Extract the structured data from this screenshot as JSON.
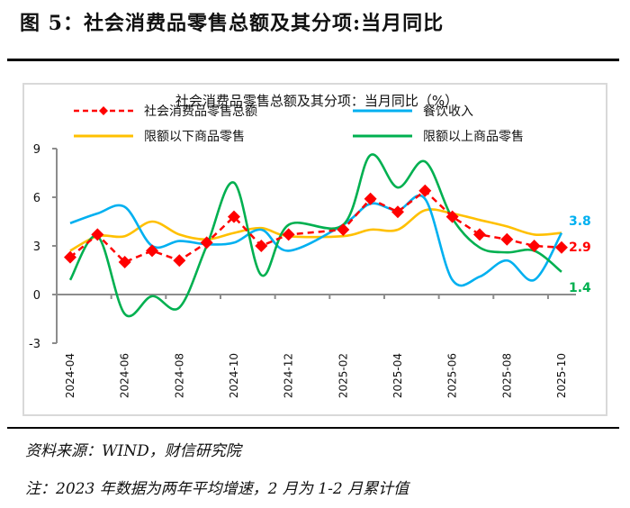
{
  "figure": {
    "title": "图 5：社会消费品零售总额及其分项:当月同比",
    "source": "资料来源：WIND，财信研究院",
    "note": "注：2023 年数据为两年平均增速，2 月为 1-2 月累计值"
  },
  "chart_data": {
    "type": "line",
    "title": "社会消费品零售总额及其分项：当月同比（%）",
    "xlabel": "",
    "ylabel": "",
    "ylim": [
      -3,
      9
    ],
    "yticks": [
      "9",
      "6",
      "3",
      "0",
      "-3"
    ],
    "ytick_values": [
      9,
      6,
      3,
      0,
      -3
    ],
    "categories": [
      "2024-04",
      "2024-05",
      "2024-06",
      "2024-07",
      "2024-08",
      "2024-09",
      "2024-10",
      "2024-11",
      "2024-12",
      "2025-01",
      "2025-02",
      "2025-03",
      "2025-04",
      "2025-05",
      "2025-06",
      "2025-07",
      "2025-08",
      "2025-09",
      "2025-10"
    ],
    "xtick_labels": [
      "2024-04",
      "2024-06",
      "2024-08",
      "2024-10",
      "2024-12",
      "2025-02",
      "2025-04",
      "2025-06",
      "2025-08",
      "2025-10"
    ],
    "legend_position": "top",
    "series": [
      {
        "name": "社会消费品零售总额",
        "color": "#ff0000",
        "style": "dashed-diamond",
        "values": [
          2.3,
          3.7,
          2.0,
          2.7,
          2.1,
          3.2,
          4.8,
          3.0,
          3.7,
          null,
          4.0,
          5.9,
          5.1,
          6.4,
          4.8,
          3.7,
          3.4,
          3.0,
          2.9
        ],
        "end_label": "2.9"
      },
      {
        "name": "餐饮收入",
        "color": "#00b0f0",
        "style": "smooth",
        "values": [
          4.4,
          5.0,
          5.4,
          3.0,
          3.3,
          3.1,
          3.2,
          4.0,
          2.7,
          null,
          4.3,
          5.6,
          5.2,
          5.9,
          0.9,
          1.1,
          2.1,
          0.9,
          3.8
        ],
        "end_label": "3.8"
      },
      {
        "name": "限额以下商品零售",
        "color": "#ffc000",
        "style": "smooth",
        "values": [
          2.7,
          3.6,
          3.6,
          4.5,
          3.7,
          3.4,
          3.8,
          4.1,
          3.6,
          null,
          3.6,
          4.0,
          4.0,
          5.2,
          5.0,
          4.6,
          4.2,
          3.7,
          3.8
        ],
        "end_label": ""
      },
      {
        "name": "限额以上商品零售",
        "color": "#00b050",
        "style": "smooth",
        "values": [
          0.9,
          3.6,
          -1.2,
          -0.1,
          -0.8,
          3.0,
          6.9,
          1.2,
          4.3,
          null,
          4.3,
          8.6,
          6.6,
          8.2,
          4.7,
          2.9,
          2.6,
          2.7,
          1.4
        ],
        "end_label": "1.4"
      }
    ]
  }
}
